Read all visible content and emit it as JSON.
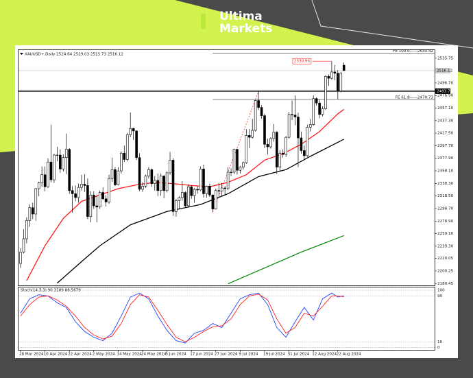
{
  "brand": {
    "line1": "Ultima",
    "line2": "Markets"
  },
  "chart_data": [
    {
      "type": "candlestick",
      "title": "XAUUSD+,Daily 2524.64 2529.03 2515.73 2516.12",
      "categories": [
        "28 Mar 2024",
        null,
        null,
        null,
        null,
        null,
        null,
        null,
        "10 Apr 2024",
        null,
        null,
        null,
        null,
        null,
        null,
        null,
        "22 Apr 2024",
        null,
        null,
        null,
        null,
        null,
        null,
        null,
        "2 May 2024",
        null,
        null,
        null,
        null,
        null,
        null,
        null,
        "14 May 2024",
        null,
        null,
        null,
        null,
        null,
        null,
        null,
        "24 May 2024",
        null,
        null,
        null,
        null,
        null,
        null,
        null,
        "5 Jun 2024",
        null,
        null,
        null,
        null,
        null,
        null,
        null,
        "17 Jun 2024",
        null,
        null,
        null,
        null,
        null,
        null,
        null,
        "27 Jun 2024",
        null,
        null,
        null,
        null,
        null,
        null,
        null,
        "9 Jul 2024",
        null,
        null,
        null,
        null,
        null,
        null,
        null,
        "19 Jul 2024",
        null,
        null,
        null,
        null,
        null,
        null,
        null,
        "31 Jul 2024",
        null,
        null,
        null,
        null,
        null,
        null,
        null,
        "12 Aug 2024",
        null,
        null,
        null,
        null,
        null,
        null,
        null,
        "22 Aug 2024",
        null,
        null
      ],
      "open": [
        2212,
        2230,
        2251,
        2280,
        2300,
        2290,
        2330,
        2339,
        2352,
        2333,
        2372,
        2344,
        2383,
        2383,
        2361,
        2379,
        2392,
        2327,
        2322,
        2316,
        2332,
        2337,
        2335,
        2286,
        2320,
        2303,
        2301,
        2324,
        2314,
        2309,
        2346,
        2360,
        2336,
        2358,
        2386,
        2376,
        2415,
        2425,
        2421,
        2379,
        2329,
        2334,
        2350,
        2360,
        2338,
        2343,
        2327,
        2350,
        2327,
        2355,
        2375,
        2294,
        2311,
        2316,
        2324,
        2303,
        2333,
        2319,
        2329,
        2328,
        2361,
        2322,
        2334,
        2320,
        2298,
        2327,
        2326,
        2331,
        2330,
        2356,
        2356,
        2392,
        2359,
        2364,
        2371,
        2414,
        2411,
        2422,
        2469,
        2458,
        2445,
        2400,
        2396,
        2409,
        2419,
        2364,
        2386,
        2384,
        2411,
        2447,
        2446,
        2443,
        2410,
        2390,
        2382,
        2427,
        2431,
        2472,
        2465,
        2447,
        2456,
        2507,
        2504,
        2514,
        2512,
        2484,
        2524.64
      ],
      "high": [
        2236,
        2266,
        2285,
        2305,
        2308,
        2331,
        2341,
        2365,
        2365,
        2378,
        2431,
        2385,
        2396,
        2392,
        2384,
        2417,
        2394,
        2334,
        2335,
        2338,
        2352,
        2353,
        2346,
        2326,
        2326,
        2319,
        2327,
        2332,
        2320,
        2352,
        2379,
        2364,
        2364,
        2389,
        2398,
        2418,
        2450,
        2426,
        2422,
        2386,
        2340,
        2352,
        2364,
        2362,
        2350,
        2354,
        2354,
        2351,
        2357,
        2388,
        2378,
        2314,
        2318,
        2342,
        2326,
        2337,
        2335,
        2331,
        2334,
        2365,
        2368,
        2335,
        2338,
        2321,
        2330,
        2339,
        2339,
        2334,
        2364,
        2362,
        2393,
        2393,
        2366,
        2373,
        2424,
        2424,
        2440,
        2470,
        2483,
        2462,
        2448,
        2409,
        2411,
        2432,
        2421,
        2391,
        2392,
        2413,
        2451,
        2469,
        2477,
        2450,
        2420,
        2398,
        2431,
        2440,
        2477,
        2474,
        2470,
        2460,
        2509,
        2510,
        2530.96,
        2525,
        2517,
        2514,
        2529.03
      ],
      "low": [
        2205,
        2228,
        2244,
        2270,
        2282,
        2279,
        2318,
        2333,
        2326,
        2331,
        2340,
        2339,
        2373,
        2355,
        2357,
        2353,
        2322,
        2292,
        2310,
        2308,
        2327,
        2325,
        2282,
        2277,
        2298,
        2277,
        2298,
        2312,
        2302,
        2306,
        2341,
        2334,
        2335,
        2354,
        2372,
        2373,
        2411,
        2407,
        2375,
        2326,
        2325,
        2331,
        2346,
        2333,
        2327,
        2318,
        2319,
        2315,
        2324,
        2352,
        2287,
        2286,
        2298,
        2311,
        2300,
        2301,
        2314,
        2308,
        2322,
        2326,
        2316,
        2316,
        2317,
        2293,
        2297,
        2319,
        2318,
        2319,
        2328,
        2350,
        2353,
        2352,
        2354,
        2360,
        2369,
        2394,
        2409,
        2420,
        2454,
        2440,
        2394,
        2384,
        2393,
        2404,
        2353,
        2358,
        2379,
        2380,
        2409,
        2438,
        2430,
        2364,
        2385,
        2375,
        2380,
        2420,
        2429,
        2461,
        2441,
        2444,
        2454,
        2492,
        2502,
        2501,
        2471,
        2482,
        2515.73
      ],
      "close": [
        2230,
        2251,
        2280,
        2300,
        2290,
        2330,
        2339,
        2352,
        2333,
        2372,
        2344,
        2383,
        2383,
        2361,
        2379,
        2392,
        2327,
        2322,
        2316,
        2332,
        2337,
        2335,
        2286,
        2320,
        2303,
        2301,
        2324,
        2314,
        2309,
        2346,
        2360,
        2336,
        2358,
        2386,
        2376,
        2415,
        2425,
        2421,
        2379,
        2329,
        2334,
        2350,
        2360,
        2338,
        2343,
        2327,
        2350,
        2327,
        2355,
        2375,
        2294,
        2311,
        2316,
        2324,
        2303,
        2333,
        2319,
        2329,
        2328,
        2361,
        2322,
        2334,
        2320,
        2298,
        2327,
        2326,
        2331,
        2330,
        2356,
        2356,
        2392,
        2359,
        2364,
        2371,
        2414,
        2411,
        2422,
        2469,
        2458,
        2445,
        2400,
        2396,
        2409,
        2419,
        2364,
        2386,
        2384,
        2411,
        2447,
        2446,
        2443,
        2410,
        2390,
        2382,
        2427,
        2431,
        2472,
        2465,
        2447,
        2456,
        2507,
        2504,
        2514,
        2512,
        2484,
        2512,
        2516.12
      ],
      "ylim": [
        2177.5,
        2548.5
      ],
      "yticks": [
        2535.75,
        {
          "value": 2496.7,
          "label": "2496.70"
        },
        {
          "value": 2476.9,
          "label": "2476.90"
        },
        {
          "value": 2457.1,
          "label": "2457.10"
        },
        {
          "value": 2437.3,
          "label": "2437.30"
        },
        {
          "value": 2417.5,
          "label": "2417.50"
        },
        {
          "value": 2397.7,
          "label": "2397.70"
        },
        {
          "value": 2377.9,
          "label": "2377.90"
        },
        {
          "value": 2358.1,
          "label": "2358.10"
        },
        {
          "value": 2338.3,
          "label": "2338.30"
        },
        {
          "value": 2318.5,
          "label": "2318.50"
        },
        {
          "value": 2298.7,
          "label": "2298.70"
        },
        {
          "value": 2278.9,
          "label": "2278.90"
        },
        {
          "value": 2259.1,
          "label": "2259.10"
        },
        {
          "value": 2239.3,
          "label": "2239.30"
        },
        2220.05,
        2200.25,
        2180.45
      ],
      "moving_averages": [
        {
          "color": "#ff1a1a",
          "x": [
            2,
            8,
            14,
            20,
            26,
            32,
            38,
            44,
            50,
            56,
            62,
            68,
            74,
            80,
            86,
            92,
            98,
            104,
            106
          ],
          "values": [
            2185,
            2240,
            2283,
            2310,
            2320,
            2330,
            2336,
            2340,
            2338,
            2335,
            2333,
            2340,
            2352,
            2375,
            2385,
            2400,
            2420,
            2448,
            2455
          ]
        },
        {
          "color": "#000000",
          "x": [
            12,
            20,
            26,
            36,
            48,
            59,
            68,
            78,
            87,
            95,
            106
          ],
          "values": [
            2181,
            2215,
            2240,
            2273,
            2294,
            2305,
            2322,
            2349,
            2360,
            2381,
            2408
          ]
        },
        {
          "color": "#0a8a0a",
          "x": [
            68,
            80,
            92,
            106
          ],
          "values": [
            2180,
            2205,
            2230,
            2256
          ]
        }
      ],
      "fib_line": {
        "color": "#ff3030",
        "x": [
          63,
          78
        ],
        "values": [
          2293,
          2483
        ]
      },
      "levels": [
        {
          "value": 2543.42,
          "label": "FE 100.0——2543.42",
          "from": 63
        },
        {
          "value": 2470.73,
          "label": "FE 61.8——2470.73",
          "from": 63
        }
      ],
      "support": {
        "value": 2483.73,
        "label": "2483.73"
      },
      "last_price": {
        "value": 2516.12,
        "label": "2516.12"
      },
      "high_marker": {
        "value": 2530.96,
        "label": "2530.96",
        "x": 102
      }
    },
    {
      "type": "line",
      "title": "Stoch(14,3,3) 90.3189 88.5679",
      "x": [
        0,
        3,
        6,
        9,
        12,
        15,
        18,
        21,
        24,
        27,
        30,
        33,
        36,
        39,
        42,
        45,
        48,
        51,
        54,
        57,
        60,
        63,
        66,
        69,
        72,
        75,
        78,
        81,
        84,
        87,
        90,
        93,
        96,
        99,
        102,
        104,
        106
      ],
      "series": [
        {
          "color": "#2040ff",
          "values": [
            60,
            85,
            92,
            90,
            78,
            70,
            45,
            28,
            18,
            12,
            25,
            55,
            88,
            95,
            85,
            55,
            30,
            12,
            8,
            25,
            30,
            42,
            35,
            60,
            85,
            92,
            95,
            75,
            35,
            18,
            45,
            70,
            48,
            85,
            95,
            88,
            90.3189
          ]
        },
        {
          "color": "#ff2020",
          "values": [
            55,
            75,
            88,
            90,
            83,
            72,
            55,
            35,
            22,
            15,
            20,
            42,
            75,
            92,
            88,
            65,
            40,
            18,
            10,
            18,
            28,
            36,
            38,
            50,
            75,
            90,
            93,
            83,
            50,
            25,
            35,
            60,
            55,
            72,
            90,
            90,
            88.5679
          ]
        }
      ],
      "ylim": [
        -4,
        106
      ],
      "yticks": [
        100,
        90,
        10,
        0
      ]
    }
  ]
}
